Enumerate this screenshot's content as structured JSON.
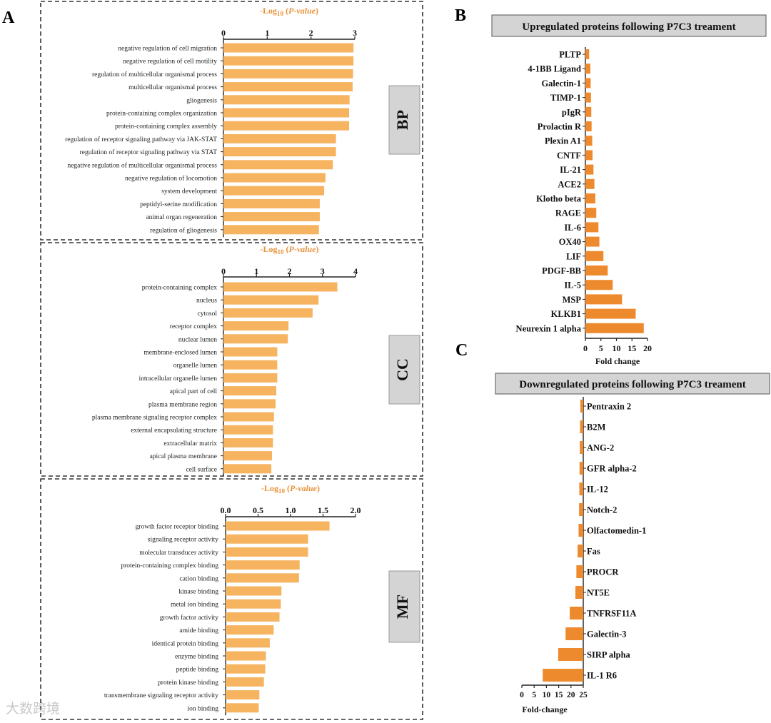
{
  "colors": {
    "panel_a_bar": "#F6B461",
    "panel_bc_bar": "#EE8A2E",
    "accent_text": "#E8923A",
    "label_box": "#D4D4D4"
  },
  "panel_labels": {
    "a": "A",
    "b": "B",
    "c": "C"
  },
  "watermark": "大数跨境",
  "chart_data": [
    {
      "id": "bp",
      "type": "bar",
      "orientation": "horizontal",
      "title": "-Log10 (P-value)",
      "title_parts": [
        "-Log",
        "10",
        " (",
        "P-value",
        ")"
      ],
      "category_label": "BP",
      "xlim": [
        0,
        3
      ],
      "ticks": [
        0,
        1,
        2,
        3
      ],
      "tick_labels": [
        "0",
        "1",
        "2",
        "3"
      ],
      "categories": [
        "negative regulation of cell migration",
        "negative regulation of cell motility",
        "regulation of multicellular organismal process",
        "multicellular organismal process",
        "gliogenesis",
        "protein-containing complex organization",
        "protein-containing complex assembly",
        "regulation of receptor signaling pathway via JAK-STAT",
        "regulation of receptor signaling pathway via STAT",
        "negative regulation of multicellular organismal process",
        "negative regulation of locomotion",
        "system development",
        "peptidyl-serine modification",
        "animal organ regeneration",
        "regulation of gliogenesis"
      ],
      "values": [
        2.97,
        2.97,
        2.96,
        2.95,
        2.88,
        2.87,
        2.87,
        2.57,
        2.57,
        2.5,
        2.33,
        2.3,
        2.2,
        2.2,
        2.18
      ]
    },
    {
      "id": "cc",
      "type": "bar",
      "orientation": "horizontal",
      "title": "-Log10 (P-value)",
      "title_parts": [
        "-Log",
        "10",
        " (",
        "P-value",
        ")"
      ],
      "category_label": "CC",
      "xlim": [
        0,
        4
      ],
      "ticks": [
        0,
        1,
        2,
        3,
        4
      ],
      "tick_labels": [
        "0",
        "1",
        "2",
        "3",
        "4"
      ],
      "categories": [
        "protein-containing complex",
        "nucleus",
        "cytosol",
        "receptor complex",
        "nuclear lumen",
        "membrane-enclosed lumen",
        "organelle lumen",
        "intracellular organelle lumen",
        "apical part of cell",
        "plasma membrane region",
        "plasma membrane signaling receptor complex",
        "external encapsulating structure",
        "extracellular matrix",
        "apical plasma membrane",
        "cell surface"
      ],
      "values": [
        3.45,
        2.88,
        2.7,
        1.97,
        1.95,
        1.63,
        1.63,
        1.63,
        1.6,
        1.58,
        1.53,
        1.5,
        1.5,
        1.47,
        1.45
      ]
    },
    {
      "id": "mf",
      "type": "bar",
      "orientation": "horizontal",
      "title": "-Log10 (P-value)",
      "title_parts": [
        "-Log",
        "10",
        " (",
        "P-value",
        ")"
      ],
      "category_label": "MF",
      "xlim": [
        0,
        2
      ],
      "ticks": [
        0,
        0.5,
        1,
        1.5,
        2
      ],
      "tick_labels": [
        "0.0",
        "0.5",
        "1.0",
        "1.5",
        "2.0"
      ],
      "categories": [
        "growth factor receptor binding",
        "signaling receptor activity",
        "molecular transducer activity",
        "protein-containing complex binding",
        "cation binding",
        "kinase binding",
        "metal ion binding",
        "growth factor activity",
        "amide binding",
        "identical protein binding",
        "enzyme binding",
        "peptide binding",
        "protein kinase binding",
        "transmembrane signaling receptor activity",
        "ion binding"
      ],
      "values": [
        1.6,
        1.27,
        1.27,
        1.14,
        1.13,
        0.86,
        0.85,
        0.83,
        0.74,
        0.68,
        0.62,
        0.61,
        0.59,
        0.52,
        0.51
      ]
    },
    {
      "id": "up",
      "type": "bar",
      "orientation": "horizontal",
      "title": "Upregulated proteins following P7C3 treament",
      "xlabel": "Fold change",
      "xlim": [
        0,
        20
      ],
      "ticks": [
        0,
        5,
        10,
        15,
        20
      ],
      "tick_labels": [
        "0",
        "5",
        "10",
        "15",
        "20"
      ],
      "categories": [
        "PLTP",
        "4-1BB Ligand",
        "Galectin-1",
        "TIMP-1",
        "pIgR",
        "Prolactin R",
        "Plexin A1",
        "CNTF",
        "IL-21",
        "ACE2",
        "Klotho beta",
        "RAGE",
        "IL-6",
        "OX40",
        "LIF",
        "PDGF-BB",
        "IL-5",
        "MSP",
        "KLKB1",
        "Neurexin 1 alpha"
      ],
      "values": [
        1.2,
        1.6,
        1.7,
        1.8,
        1.9,
        2.0,
        2.2,
        2.3,
        2.6,
        2.9,
        3.2,
        3.5,
        4.2,
        4.5,
        5.8,
        7.2,
        8.8,
        11.8,
        16.2,
        18.8
      ]
    },
    {
      "id": "down",
      "type": "bar",
      "orientation": "horizontal",
      "direction": "reversed",
      "title": "Downregulated proteins following P7C3 treament",
      "xlabel": "Fold-change",
      "xlim": [
        0,
        25
      ],
      "ticks": [
        25,
        20,
        15,
        10,
        5,
        0
      ],
      "tick_labels": [
        "0",
        "5",
        "10",
        "15",
        "20",
        "25"
      ],
      "categories": [
        "Pentraxin 2",
        "B2M",
        "ANG-2",
        "GFR alpha-2",
        "IL-12",
        "Notch-2",
        "Olfactomedin-1",
        "Fas",
        "PROCR",
        "NT5E",
        "TNFRSF11A",
        "Galectin-3",
        "SIRP alpha",
        "IL-1 R6"
      ],
      "values": [
        1.2,
        1.3,
        1.4,
        1.5,
        1.6,
        1.7,
        1.9,
        2.3,
        2.8,
        3.2,
        5.5,
        7.2,
        10.2,
        16.5
      ]
    }
  ]
}
